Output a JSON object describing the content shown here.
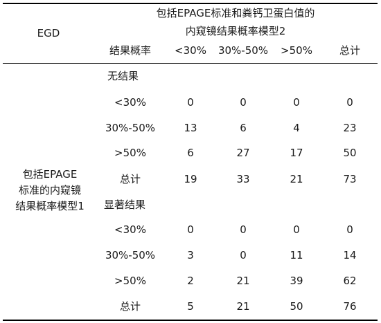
{
  "header": {
    "egd_label": "EGD",
    "model2_title_line1": "包括EPAGE标准和粪钙卫蛋白值的",
    "model2_title_line2": "内窥镜结果概率模型2",
    "result_prob_label": "结果概率",
    "columns": [
      "<30%",
      "30%-50%",
      ">50%",
      "总计"
    ]
  },
  "side_label": {
    "line1": "包括EPAGE",
    "line2": "标准的内窥镜",
    "line3": "结果概率模型1"
  },
  "groups": [
    {
      "title": "无结果",
      "rows": [
        {
          "label": "<30%",
          "values": [
            "0",
            "0",
            "0",
            "0"
          ]
        },
        {
          "label": "30%-50%",
          "values": [
            "13",
            "6",
            "4",
            "23"
          ]
        },
        {
          "label": ">50%",
          "values": [
            "6",
            "27",
            "17",
            "50"
          ]
        },
        {
          "label": "总计",
          "values": [
            "19",
            "33",
            "21",
            "73"
          ]
        }
      ]
    },
    {
      "title": "显著结果",
      "rows": [
        {
          "label": "<30%",
          "values": [
            "0",
            "0",
            "0",
            "0"
          ]
        },
        {
          "label": "30%-50%",
          "values": [
            "3",
            "0",
            "11",
            "14"
          ]
        },
        {
          "label": ">50%",
          "values": [
            "2",
            "21",
            "39",
            "62"
          ]
        },
        {
          "label": "总计",
          "values": [
            "5",
            "21",
            "50",
            "76"
          ]
        }
      ]
    }
  ]
}
